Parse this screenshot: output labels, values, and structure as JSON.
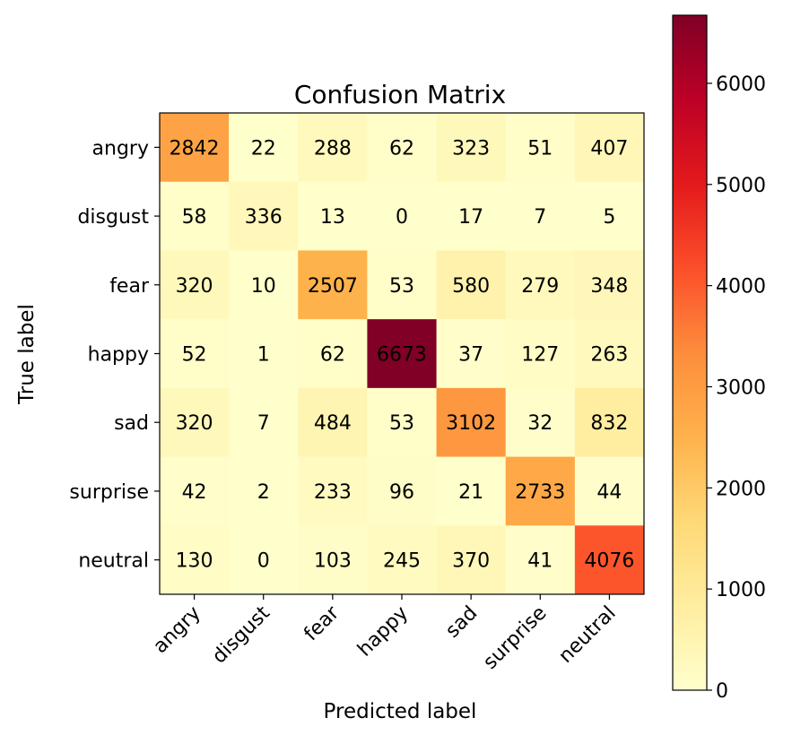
{
  "chart_data": {
    "type": "heatmap",
    "title": "Confusion Matrix",
    "xlabel": "Predicted label",
    "ylabel": "True label",
    "x_categories": [
      "angry",
      "disgust",
      "fear",
      "happy",
      "sad",
      "surprise",
      "neutral"
    ],
    "y_categories": [
      "angry",
      "disgust",
      "fear",
      "happy",
      "sad",
      "surprise",
      "neutral"
    ],
    "values": [
      [
        2842,
        22,
        288,
        62,
        323,
        51,
        407
      ],
      [
        58,
        336,
        13,
        0,
        17,
        7,
        5
      ],
      [
        320,
        10,
        2507,
        53,
        580,
        279,
        348
      ],
      [
        52,
        1,
        62,
        6673,
        37,
        127,
        263
      ],
      [
        320,
        7,
        484,
        53,
        3102,
        32,
        832
      ],
      [
        42,
        2,
        233,
        96,
        21,
        2733,
        44
      ],
      [
        130,
        0,
        103,
        245,
        370,
        41,
        4076
      ]
    ],
    "colormap": "YlOrRd",
    "colorbar": {
      "range": [
        0,
        6673
      ],
      "ticks": [
        0,
        1000,
        2000,
        3000,
        4000,
        5000,
        6000
      ],
      "position": "right"
    },
    "grid": false
  }
}
